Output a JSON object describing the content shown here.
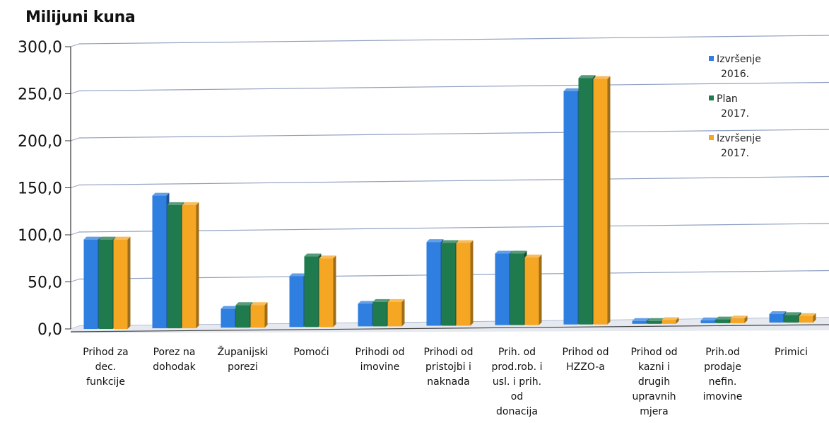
{
  "chart_data": {
    "type": "bar",
    "title": "Milijuni kuna",
    "xlabel": "",
    "ylabel": "",
    "ylim": [
      0,
      300
    ],
    "yticks": [
      "0,0",
      "50,0",
      "100,0",
      "150,0",
      "200,0",
      "250,0",
      "300,0"
    ],
    "grid": true,
    "legend_position": "right",
    "categories": [
      [
        "Prihod za",
        "dec.",
        "funkcije"
      ],
      [
        "Porez na",
        "dohodak"
      ],
      [
        "Županijski",
        "porezi"
      ],
      [
        "Pomoći"
      ],
      [
        "Prihodi od",
        "imovine"
      ],
      [
        "Prihodi od",
        "pristojbi i",
        "naknada"
      ],
      [
        "Prih. od",
        "prod.rob. i",
        "usl. i prih.",
        "od",
        "donacija"
      ],
      [
        "Prihod od",
        "HZZO-a"
      ],
      [
        "Prihod od",
        "kazni i",
        "drugih",
        "upravnih",
        "mjera"
      ],
      [
        "Prih.od",
        "prodaje",
        "nefin.",
        "imovine"
      ],
      [
        "Primici"
      ]
    ],
    "series": [
      {
        "name": [
          "Izvršenje",
          "2016."
        ],
        "color": "#2f7fe0",
        "values": [
          95,
          141,
          20,
          54,
          24,
          89,
          76,
          248,
          3,
          3,
          9
        ]
      },
      {
        "name": [
          "Plan",
          "2017."
        ],
        "color": "#1f7a4e",
        "values": [
          95,
          131,
          24,
          75,
          26,
          88,
          76,
          262,
          3,
          4,
          8
        ]
      },
      {
        "name": [
          "Izvršenje",
          "2017."
        ],
        "color": "#f5a623",
        "values": [
          95,
          131,
          24,
          73,
          26,
          88,
          72,
          261,
          4,
          5,
          7
        ]
      }
    ]
  }
}
